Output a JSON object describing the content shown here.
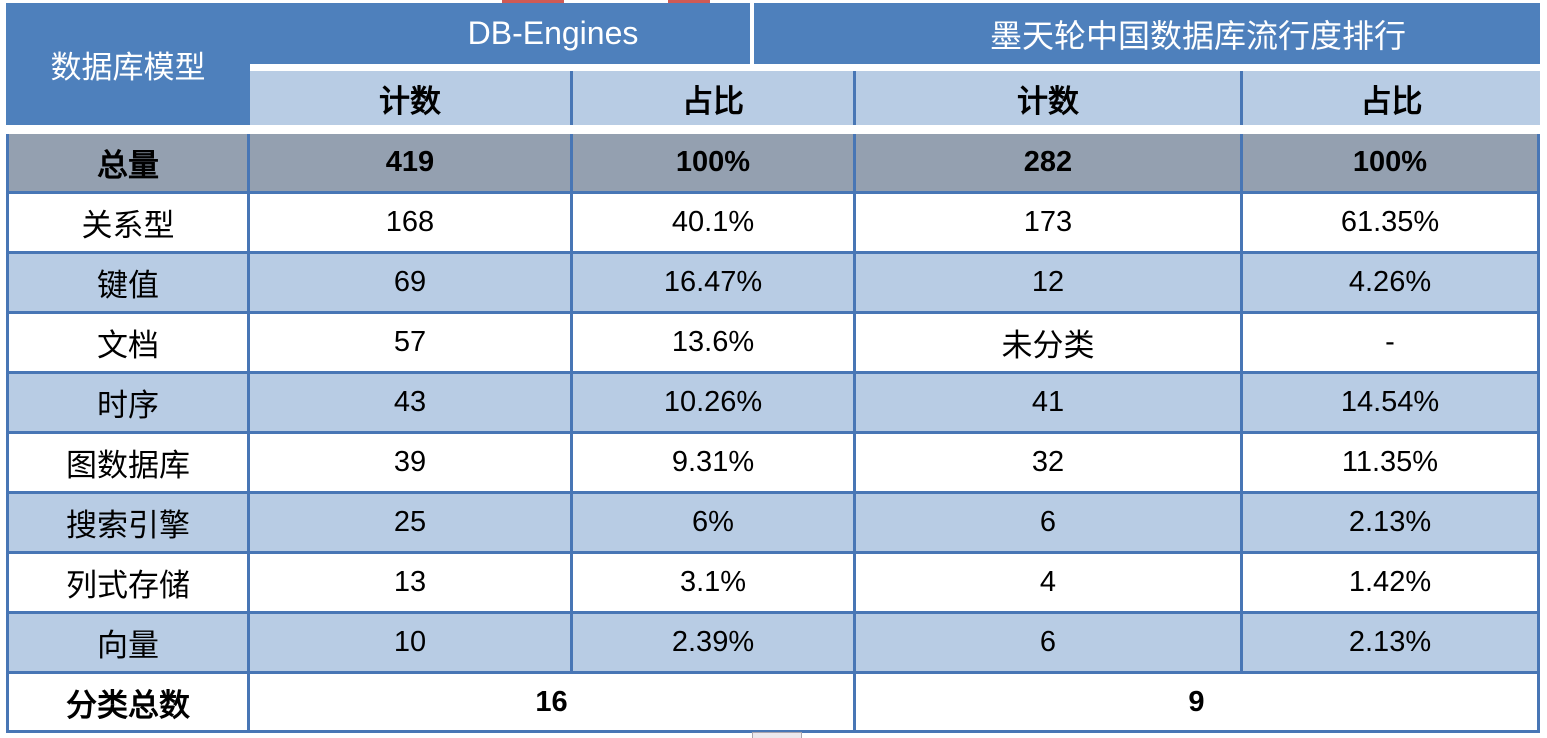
{
  "table": {
    "corner": "数据库模型",
    "groups": [
      "DB-Engines",
      "墨天轮中国数据库流行度排行"
    ],
    "subheaders": [
      "计数",
      "占比",
      "计数",
      "占比"
    ],
    "total": {
      "label": "总量",
      "values": [
        "419",
        "100%",
        "282",
        "100%"
      ]
    },
    "rows": [
      {
        "label": "关系型",
        "values": [
          "168",
          "40.1%",
          "173",
          "61.35%"
        ]
      },
      {
        "label": "键值",
        "values": [
          "69",
          "16.47%",
          "12",
          "4.26%"
        ]
      },
      {
        "label": "文档",
        "values": [
          "57",
          "13.6%",
          "未分类",
          "-"
        ]
      },
      {
        "label": "时序",
        "values": [
          "43",
          "10.26%",
          "41",
          "14.54%"
        ]
      },
      {
        "label": "图数据库",
        "values": [
          "39",
          "9.31%",
          "32",
          "11.35%"
        ]
      },
      {
        "label": "搜索引擎",
        "values": [
          "25",
          "6%",
          "6",
          "2.13%"
        ]
      },
      {
        "label": "列式存储",
        "values": [
          "13",
          "3.1%",
          "4",
          "1.42%"
        ]
      },
      {
        "label": "向量",
        "values": [
          "10",
          "2.39%",
          "6",
          "2.13%"
        ]
      }
    ],
    "footer": {
      "label": "分类总数",
      "values": [
        "16",
        "9"
      ]
    }
  },
  "colors": {
    "header_blue": "#4e80bc",
    "light_blue": "#b8cce4",
    "total_gray": "#94a0b0",
    "border_blue": "#4876b5",
    "artifact_red": "#cf5a55"
  },
  "chart_data": {
    "type": "table",
    "title": "数据库模型分类对比：DB-Engines vs 墨天轮中国数据库流行度排行",
    "columns": [
      "数据库模型",
      "DB-Engines 计数",
      "DB-Engines 占比",
      "墨天轮 计数",
      "墨天轮 占比"
    ],
    "rows": [
      [
        "总量",
        "419",
        "100%",
        "282",
        "100%"
      ],
      [
        "关系型",
        "168",
        "40.1%",
        "173",
        "61.35%"
      ],
      [
        "键值",
        "69",
        "16.47%",
        "12",
        "4.26%"
      ],
      [
        "文档",
        "57",
        "13.6%",
        "未分类",
        "-"
      ],
      [
        "时序",
        "43",
        "10.26%",
        "41",
        "14.54%"
      ],
      [
        "图数据库",
        "39",
        "9.31%",
        "32",
        "11.35%"
      ],
      [
        "搜索引擎",
        "25",
        "6%",
        "6",
        "2.13%"
      ],
      [
        "列式存储",
        "13",
        "3.1%",
        "4",
        "1.42%"
      ],
      [
        "向量",
        "10",
        "2.39%",
        "6",
        "2.13%"
      ],
      [
        "分类总数",
        "16",
        "",
        "9",
        ""
      ]
    ]
  }
}
